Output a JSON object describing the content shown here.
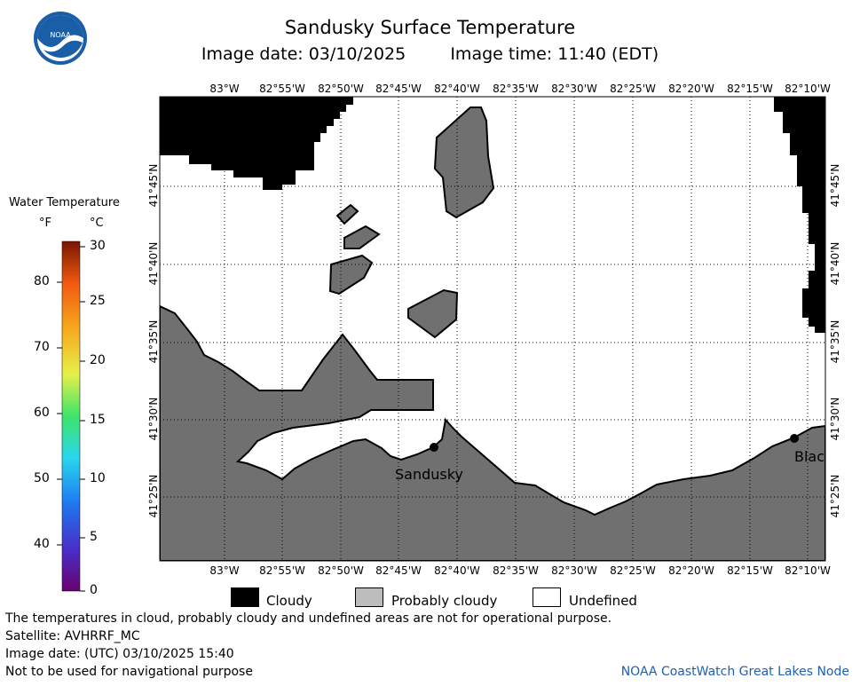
{
  "header": {
    "title": "Sandusky Surface Temperature",
    "image_date": "Image date: 03/10/2025",
    "image_time": "Image time: 11:40 (EDT)",
    "logo_text": "NOAA"
  },
  "map": {
    "lon_labels": [
      "83°W",
      "82°55'W",
      "82°50'W",
      "82°45'W",
      "82°40'W",
      "82°35'W",
      "82°30'W",
      "82°25'W",
      "82°20'W",
      "82°15'W",
      "82°10'W"
    ],
    "lat_labels": [
      "41°45'N",
      "41°40'N",
      "41°35'N",
      "41°30'N",
      "41°25'N"
    ],
    "cities": [
      "Sandusky",
      "Blac"
    ],
    "colors": {
      "land": "#707070",
      "cloud": "#000000",
      "undefined": "#ffffff",
      "grid": "#000000"
    }
  },
  "colorbar": {
    "title": "Water Temperature",
    "unit_f": "°F",
    "unit_c": "°C",
    "f_ticks": [
      "80",
      "70",
      "60",
      "50",
      "40"
    ],
    "c_ticks": [
      "30",
      "25",
      "20",
      "15",
      "10",
      "5",
      "0"
    ]
  },
  "legend": {
    "cloudy": "Cloudy",
    "probably_cloudy": "Probably cloudy",
    "undefined": "Undefined"
  },
  "footer": {
    "note": "The temperatures in cloud, probably cloudy and undefined areas are not for operational purpose.",
    "satellite": "Satellite: AVHRRF_MC",
    "utc_date": "Image date: (UTC) 03/10/2025  15:40",
    "navigation": "Not to be used for navigational purpose",
    "credit": "NOAA CoastWatch Great Lakes Node"
  }
}
